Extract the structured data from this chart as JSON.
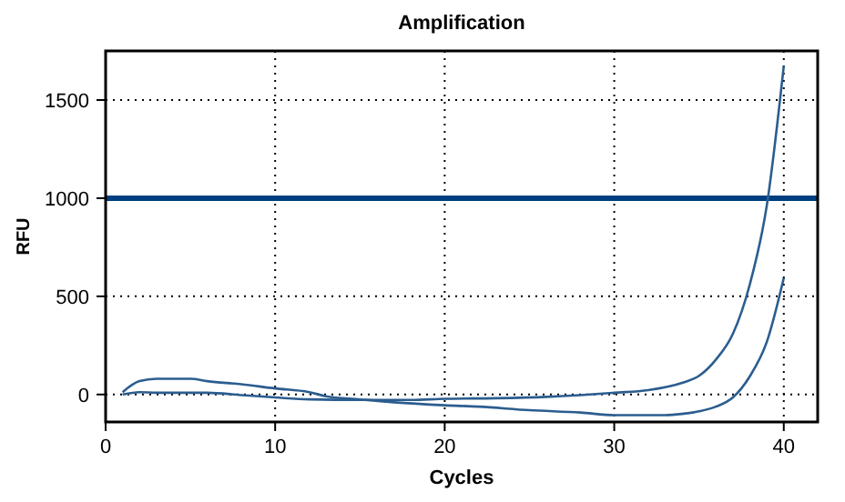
{
  "chart_data": {
    "type": "line",
    "title": "Amplification",
    "xlabel": "Cycles",
    "ylabel": "RFU",
    "xlim": [
      0,
      42
    ],
    "xticks": [
      0,
      10,
      20,
      30,
      40
    ],
    "ylim": [
      -140,
      1750
    ],
    "yticks": [
      0,
      500,
      1000,
      1500
    ],
    "grid": true,
    "series": [
      {
        "color": "#2b5d8f",
        "x": [
          1,
          2,
          3,
          4,
          5,
          6,
          8,
          10,
          12,
          15,
          18,
          20,
          23,
          26,
          28,
          30,
          32,
          34,
          35,
          36,
          37,
          38,
          39,
          40
        ],
        "values": [
          0,
          12,
          9,
          9,
          9,
          9,
          -3,
          -15,
          -25,
          -28,
          -28,
          -22,
          -19,
          -12,
          -3,
          9,
          22,
          59,
          95,
          178,
          309,
          562,
          963,
          1673
        ]
      },
      {
        "color": "#2b5d8f",
        "x": [
          1,
          2,
          3,
          4,
          5,
          6,
          8,
          10,
          12,
          13,
          15,
          17,
          20,
          22,
          25,
          28,
          30,
          33,
          34,
          35,
          36,
          37,
          38,
          39,
          40
        ],
        "values": [
          12,
          68,
          80,
          80,
          80,
          68,
          52,
          31,
          12,
          -9,
          -25,
          -40,
          -55,
          -62,
          -80,
          -92,
          -105,
          -105,
          -99,
          -86,
          -62,
          -15,
          93,
          268,
          593
        ]
      }
    ],
    "ref_lines": [
      {
        "axis": "y",
        "value": 1000,
        "color": "#003f7f"
      }
    ]
  }
}
